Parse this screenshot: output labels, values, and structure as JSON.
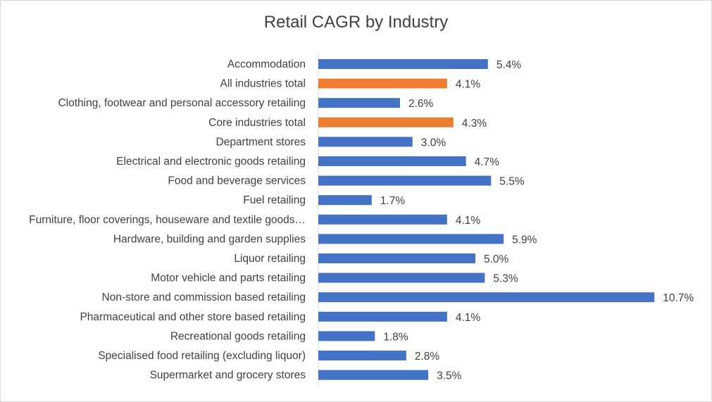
{
  "chart_data": {
    "type": "bar",
    "orientation": "horizontal",
    "title": "Retail CAGR by Industry",
    "xlabel": "",
    "ylabel": "",
    "grid": false,
    "legend": "none",
    "value_suffix": "%",
    "categories": [
      "Accommodation",
      "All industries total",
      "Clothing, footwear and personal accessory retailing",
      "Core industries total",
      "Department stores",
      "Electrical and electronic goods retailing",
      "Food and beverage services",
      "Fuel retailing",
      "Furniture, floor coverings, houseware and textile goods…",
      "Hardware, building and garden supplies",
      "Liquor retailing",
      "Motor vehicle and parts retailing",
      "Non-store and commission based retailing",
      "Pharmaceutical and other store based retailing",
      "Recreational goods retailing",
      "Specialised food retailing (excluding liquor)",
      "Supermarket and grocery stores"
    ],
    "values": [
      5.4,
      4.1,
      2.6,
      4.3,
      3.0,
      4.7,
      5.5,
      1.7,
      4.1,
      5.9,
      5.0,
      5.3,
      10.7,
      4.1,
      1.8,
      2.8,
      3.5
    ],
    "value_labels": [
      "5.4%",
      "4.1%",
      "2.6%",
      "4.3%",
      "3.0%",
      "4.7%",
      "5.5%",
      "1.7%",
      "4.1%",
      "5.9%",
      "5.0%",
      "5.3%",
      "10.7%",
      "4.1%",
      "1.8%",
      "2.8%",
      "3.5%"
    ],
    "highlighted": [
      "All industries total",
      "Core industries total"
    ],
    "colors": {
      "default": "#4472c4",
      "highlight": "#ed7d31"
    }
  }
}
